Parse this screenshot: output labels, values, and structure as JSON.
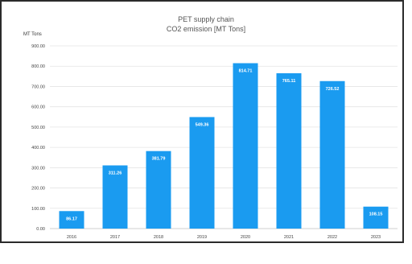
{
  "chart_data": {
    "type": "bar",
    "title": "PET supply chain",
    "subtitle": "CO2 emission [MT Tons]",
    "ylabel": "MT Tons",
    "xlabel": "",
    "categories": [
      "2016",
      "2017",
      "2018",
      "2019",
      "2020",
      "2021",
      "2022",
      "2023"
    ],
    "values": [
      86.17,
      311.26,
      381.79,
      549.36,
      814.71,
      765.11,
      726.52,
      108.15
    ],
    "value_labels": [
      "86.17",
      "311.26",
      "381.79",
      "549.36",
      "814.71",
      "765.11",
      "726.52",
      "108.15"
    ],
    "ylim": [
      0,
      900
    ],
    "yticks": [
      0,
      100,
      200,
      300,
      400,
      500,
      600,
      700,
      800,
      900
    ],
    "ytick_labels": [
      "0.00",
      "100.00",
      "200.00",
      "300.00",
      "400.00",
      "500.00",
      "600.00",
      "700.00",
      "800.00",
      "900.00"
    ],
    "grid": true,
    "bar_color": "#1a9bf0",
    "grid_color": "#e4e4e4"
  }
}
